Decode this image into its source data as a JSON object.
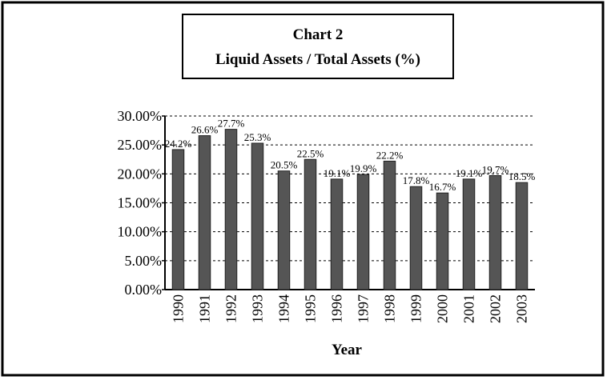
{
  "chart_data": {
    "type": "bar",
    "title": "Chart 2",
    "subtitle": "Liquid Assets / Total Assets (%)",
    "x_label": "Year",
    "categories": [
      "1990",
      "1991",
      "1992",
      "1993",
      "1994",
      "1995",
      "1996",
      "1997",
      "1998",
      "1999",
      "2000",
      "2001",
      "2002",
      "2003"
    ],
    "values": [
      24.2,
      26.6,
      27.7,
      25.3,
      20.5,
      22.5,
      19.1,
      19.9,
      22.2,
      17.8,
      16.7,
      19.1,
      19.7,
      18.5
    ],
    "value_labels": [
      "24.2%",
      "26.6%",
      "27.7%",
      "25.3%",
      "20.5%",
      "22.5%",
      "19.1%",
      "19.9%",
      "22.2%",
      "17.8%",
      "16.7%",
      "19.1%",
      "19.7%",
      "18.5%"
    ],
    "color": "#555555",
    "ylim": [
      0,
      30
    ],
    "yticks": [
      {
        "value": 0,
        "label": "0.00%"
      },
      {
        "value": 5,
        "label": "5.00%"
      },
      {
        "value": 10,
        "label": "10.00%"
      },
      {
        "value": 15,
        "label": "15.00%"
      },
      {
        "value": 20,
        "label": "20.00%"
      },
      {
        "value": 25,
        "label": "25.00%"
      },
      {
        "value": 30,
        "label": "30.00%"
      }
    ],
    "grid": true
  }
}
